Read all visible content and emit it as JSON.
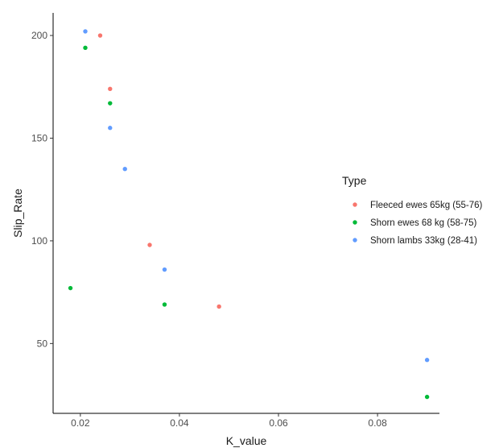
{
  "chart_data": {
    "type": "scatter",
    "title": "",
    "xlabel": "K_value",
    "ylabel": "Slip_Rate",
    "xlim": [
      0.0145,
      0.0925
    ],
    "ylim": [
      16,
      211
    ],
    "xticks": [
      0.02,
      0.04,
      0.06,
      0.08
    ],
    "xtick_labels": [
      "0.02",
      "0.04",
      "0.06",
      "0.08"
    ],
    "yticks": [
      50,
      100,
      150,
      200
    ],
    "ytick_labels": [
      "50",
      "100",
      "150",
      "200"
    ],
    "grid": false,
    "legend_title": "Type",
    "legend_position": "right",
    "series": [
      {
        "name": "Fleeced ewes 65kg (55-76)",
        "color": "#F8766D",
        "x": [
          0.024,
          0.026,
          0.034,
          0.048
        ],
        "y": [
          200,
          174,
          98,
          68
        ]
      },
      {
        "name": "Shorn ewes 68 kg (58-75)",
        "color": "#00BA38",
        "x": [
          0.021,
          0.026,
          0.018,
          0.037,
          0.09
        ],
        "y": [
          194,
          167,
          77,
          69,
          24
        ]
      },
      {
        "name": "Shorn lambs 33kg (28-41)",
        "color": "#619CFF",
        "x": [
          0.021,
          0.026,
          0.029,
          0.037,
          0.09
        ],
        "y": [
          202,
          155,
          135,
          86,
          42
        ]
      }
    ]
  }
}
